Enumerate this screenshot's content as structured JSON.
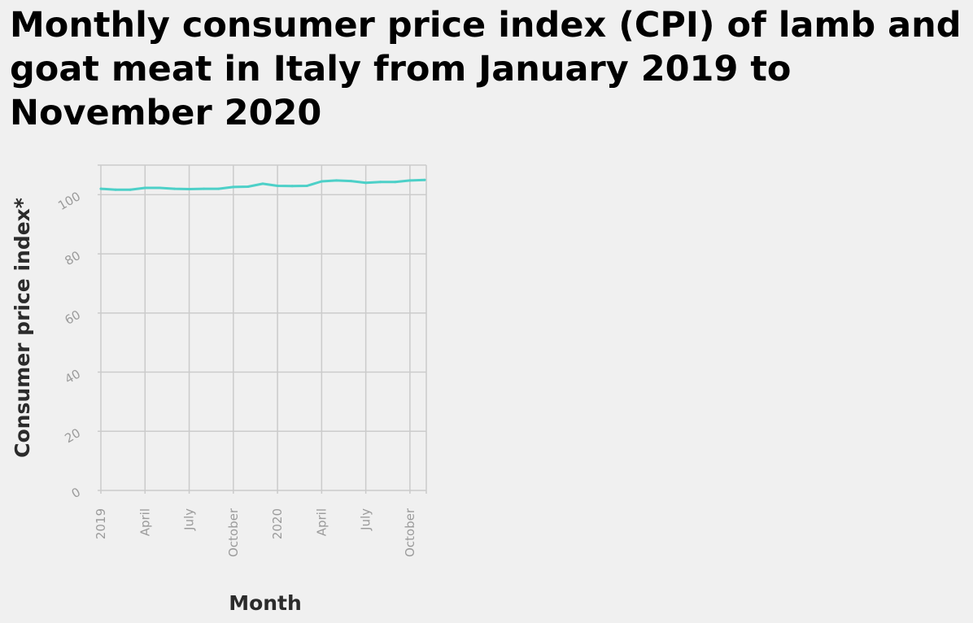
{
  "chart_data": {
    "type": "line",
    "title": "Monthly consumer price index (CPI) of lamb and goat meat in Italy from January 2019 to November 2020",
    "xlabel": "Month",
    "ylabel": "Consumer price index*",
    "x": [
      "2019-01",
      "2019-02",
      "2019-03",
      "2019-04",
      "2019-05",
      "2019-06",
      "2019-07",
      "2019-08",
      "2019-09",
      "2019-10",
      "2019-11",
      "2019-12",
      "2020-01",
      "2020-02",
      "2020-03",
      "2020-04",
      "2020-05",
      "2020-06",
      "2020-07",
      "2020-08",
      "2020-09",
      "2020-10",
      "2020-11"
    ],
    "series": [
      {
        "values": [
          102.0,
          101.7,
          101.7,
          102.3,
          102.3,
          102.0,
          101.9,
          102.0,
          102.0,
          102.6,
          102.7,
          103.7,
          103.0,
          102.9,
          103.0,
          104.5,
          104.8,
          104.6,
          104.0,
          104.3,
          104.3,
          104.8,
          105.0
        ],
        "color": "#4dd0c8"
      }
    ],
    "x_ticks": [
      {
        "x": "2019-01",
        "label": "2019"
      },
      {
        "x": "2019-04",
        "label": "April"
      },
      {
        "x": "2019-07",
        "label": "July"
      },
      {
        "x": "2019-10",
        "label": "October"
      },
      {
        "x": "2020-01",
        "label": "2020"
      },
      {
        "x": "2020-04",
        "label": "April"
      },
      {
        "x": "2020-07",
        "label": "July"
      },
      {
        "x": "2020-10",
        "label": "October"
      }
    ],
    "y_ticks": [
      0,
      20,
      40,
      60,
      80,
      100
    ],
    "ylim": [
      0,
      110
    ],
    "grid": true,
    "legend": "none"
  }
}
